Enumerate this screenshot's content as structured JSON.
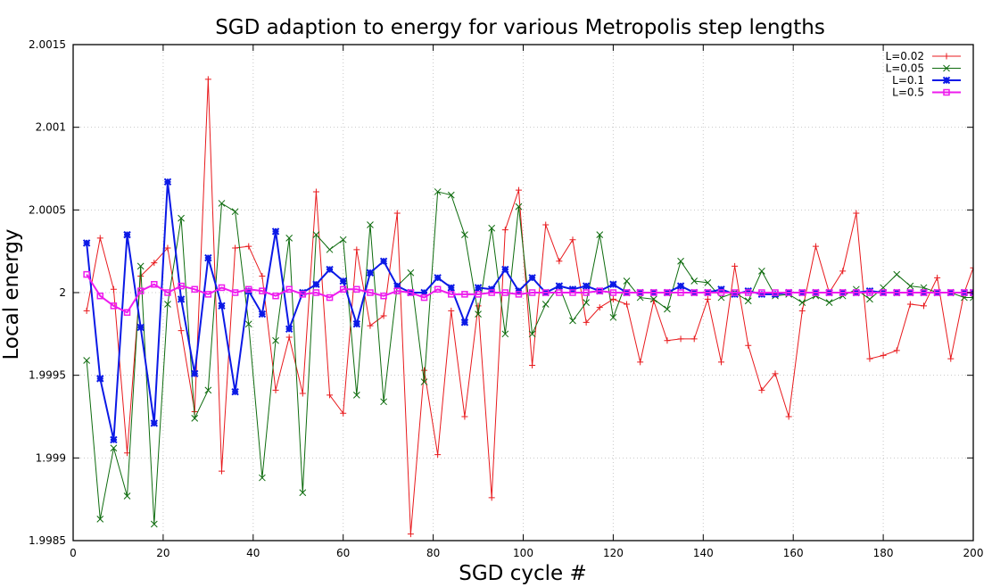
{
  "chart_data": {
    "type": "line",
    "title": "SGD adaption to energy for various Metropolis step lengths",
    "xlabel": "SGD cycle #",
    "ylabel": "Local energy",
    "xlim": [
      0,
      200
    ],
    "ylim": [
      1.9985,
      2.0015
    ],
    "xticks": [
      0,
      20,
      40,
      60,
      80,
      100,
      120,
      140,
      160,
      180,
      200
    ],
    "yticks": [
      1.9985,
      1.999,
      1.9995,
      2,
      2.0005,
      2.001,
      2.0015
    ],
    "ytick_labels": [
      "1.9985",
      "1.999",
      "1.9995",
      "2",
      "2.0005",
      "2.001",
      "2.0015"
    ],
    "grid": true,
    "legend_position": "top-right",
    "x": [
      3,
      6,
      9,
      12,
      15,
      18,
      21,
      24,
      27,
      30,
      33,
      36,
      39,
      42,
      45,
      48,
      51,
      54,
      57,
      60,
      63,
      66,
      69,
      72,
      75,
      78,
      81,
      84,
      87,
      90,
      93,
      96,
      99,
      102,
      105,
      108,
      111,
      114,
      117,
      120,
      123,
      126,
      129,
      132,
      135,
      138,
      141,
      144,
      147,
      150,
      153,
      156,
      159,
      162,
      165,
      168,
      171,
      174,
      177,
      180,
      183,
      186,
      189,
      192,
      195,
      198,
      200
    ],
    "series": [
      {
        "name": "L=0.02",
        "color": "#e8191c",
        "marker": "plus",
        "line_width": 1,
        "values": [
          1.99989,
          2.00033,
          2.00002,
          1.99903,
          2.0001,
          2.00018,
          2.00027,
          1.99977,
          1.99928,
          2.00129,
          1.99892,
          2.00027,
          2.00028,
          2.0001,
          1.99941,
          1.99973,
          1.99939,
          2.00061,
          1.99938,
          1.99927,
          2.00026,
          1.9998,
          1.99986,
          2.00048,
          1.99854,
          1.99953,
          1.99902,
          1.99989,
          1.99925,
          1.99992,
          1.99876,
          2.00038,
          2.00062,
          1.99956,
          2.00041,
          2.00019,
          2.00032,
          1.99982,
          1.99991,
          1.99996,
          1.99993,
          1.99958,
          1.99995,
          1.99971,
          1.99972,
          1.99972,
          1.99996,
          1.99958,
          2.00016,
          1.99968,
          1.99941,
          1.99951,
          1.99925,
          1.99989,
          2.00028,
          2.0,
          2.00013,
          2.00048,
          1.9996,
          1.99962,
          1.99965,
          1.99993,
          1.99992,
          2.00009,
          1.9996,
          2.0,
          2.00015
        ]
      },
      {
        "name": "L=0.05",
        "color": "#0d6b0d",
        "marker": "cross",
        "line_width": 1,
        "values": [
          1.99959,
          1.99863,
          1.99906,
          1.99877,
          2.00016,
          1.9986,
          1.99993,
          2.00045,
          1.99924,
          1.99941,
          2.00054,
          2.00049,
          1.99981,
          1.99888,
          1.99971,
          2.00033,
          1.99879,
          2.00035,
          2.00026,
          2.00032,
          1.99938,
          2.00041,
          1.99934,
          2.00004,
          2.00012,
          1.99946,
          2.00061,
          2.00059,
          2.00035,
          1.99987,
          2.00039,
          1.99975,
          2.00052,
          1.99975,
          1.99993,
          2.00004,
          1.99983,
          1.99994,
          2.00035,
          1.99985,
          2.00007,
          1.99997,
          1.99996,
          1.9999,
          2.00019,
          2.00007,
          2.00006,
          1.99997,
          2.0,
          1.99995,
          2.00013,
          1.99998,
          1.99999,
          1.99994,
          1.99998,
          1.99994,
          1.99998,
          2.00002,
          1.99996,
          2.00003,
          2.00011,
          2.00004,
          2.00003,
          2.0,
          2.0,
          1.99997,
          1.99997
        ]
      },
      {
        "name": "L=0.1",
        "color": "#0b19e6",
        "marker": "star",
        "line_width": 2,
        "values": [
          2.0003,
          1.99948,
          1.99911,
          2.00035,
          1.99979,
          1.99921,
          2.00067,
          1.99996,
          1.99951,
          2.00021,
          1.99992,
          1.9994,
          2.00001,
          1.99987,
          2.00037,
          1.99978,
          2.0,
          2.00005,
          2.00014,
          2.00007,
          1.99981,
          2.00012,
          2.00019,
          2.00004,
          2.0,
          2.0,
          2.00009,
          2.00003,
          1.99982,
          2.00003,
          2.00002,
          2.00014,
          2.00001,
          2.00009,
          2.0,
          2.00004,
          2.00002,
          2.00004,
          2.00001,
          2.00005,
          2.0,
          2.0,
          2.0,
          2.0,
          2.00004,
          2.0,
          2.0,
          2.00002,
          1.99999,
          2.00001,
          1.99999,
          1.99999,
          2.0,
          2.0,
          2.0,
          2.0,
          2.0,
          2.0,
          2.00001,
          2.0,
          2.0,
          2.0,
          2.0,
          2.0,
          2.0,
          2.0,
          2.0
        ]
      },
      {
        "name": "L=0.5",
        "color": "#ee1cee",
        "marker": "square",
        "line_width": 2,
        "values": [
          2.00011,
          1.99998,
          1.99992,
          1.99988,
          2.00001,
          2.00005,
          2.0,
          2.00004,
          2.00002,
          1.99999,
          2.00003,
          2.0,
          2.00002,
          2.00001,
          1.99998,
          2.00002,
          1.99999,
          2.0,
          1.99997,
          2.00002,
          2.00002,
          2.0,
          1.99998,
          2.00001,
          2.0,
          1.99997,
          2.00002,
          1.99999,
          1.99999,
          1.99999,
          2.0,
          2.0,
          1.99999,
          2.0,
          2.0,
          2.0,
          2.0,
          2.0,
          2.00001,
          2.0,
          2.0,
          2.0,
          2.0,
          2.0,
          2.0,
          2.0,
          2.0,
          2.0,
          2.0,
          2.0,
          2.0,
          2.0,
          2.0,
          2.0,
          2.0,
          2.0,
          2.0,
          2.0,
          2.0,
          2.0,
          2.0,
          2.0,
          2.0,
          2.0,
          2.0,
          2.0,
          2.0
        ]
      }
    ]
  }
}
